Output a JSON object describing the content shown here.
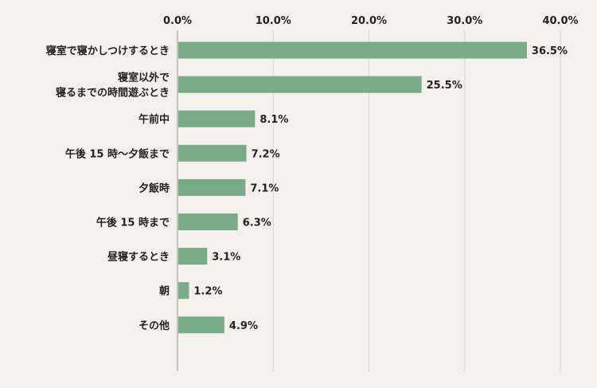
{
  "chart_data": {
    "type": "bar",
    "orientation": "horizontal",
    "title": "",
    "xlabel": "",
    "ylabel": "",
    "xlim": [
      0,
      40
    ],
    "x_ticks": [
      "0.0%",
      "10.0%",
      "20.0%",
      "30.0%",
      "40.0%"
    ],
    "x_tick_position": "top",
    "grid": true,
    "categories": [
      [
        "寝室で寝かしつけするとき"
      ],
      [
        "寝室以外で",
        "寝るまでの時間遊ぶとき"
      ],
      [
        "午前中"
      ],
      [
        "午後 15 時～夕飯まで"
      ],
      [
        "夕飯時"
      ],
      [
        "午後 15 時まで"
      ],
      [
        "昼寝するとき"
      ],
      [
        "朝"
      ],
      [
        "その他"
      ]
    ],
    "values": [
      36.5,
      25.5,
      8.1,
      7.2,
      7.1,
      6.3,
      3.1,
      1.2,
      4.9
    ],
    "value_labels": [
      "36.5%",
      "25.5%",
      "8.1%",
      "7.2%",
      "7.1%",
      "6.3%",
      "3.1%",
      "1.2%",
      "4.9%"
    ],
    "bar_color": "#7aab87",
    "grid_color": "#d6d6d6",
    "axis_color": "#9a9a9a"
  }
}
